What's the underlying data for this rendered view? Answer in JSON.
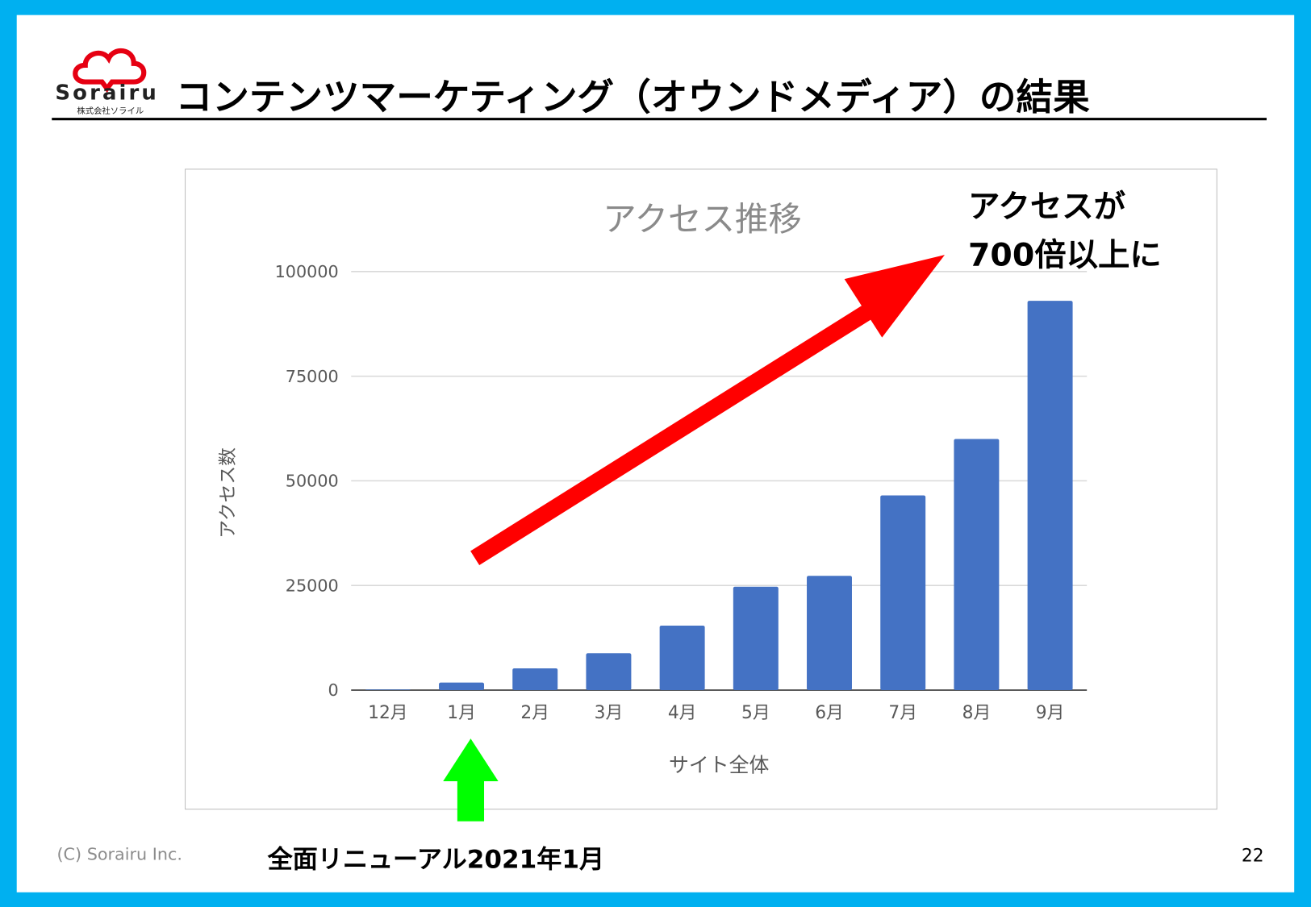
{
  "logo": {
    "text": "Sorairu",
    "subtext": "株式会社ソライル",
    "brand_color": "#e60012"
  },
  "header": {
    "title": "コンテンツマーケティング（オウンドメディア）の結果"
  },
  "chart_data": {
    "type": "bar",
    "title": "アクセス推移",
    "xlabel": "サイト全体",
    "ylabel": "アクセス数",
    "categories": [
      "12月",
      "1月",
      "2月",
      "3月",
      "4月",
      "5月",
      "6月",
      "7月",
      "8月",
      "9月"
    ],
    "values": [
      130,
      1800,
      5200,
      8800,
      15400,
      24700,
      27300,
      46500,
      60000,
      93000
    ],
    "ylim": [
      0,
      100000
    ],
    "yticks": [
      "0",
      "25000",
      "50000",
      "75000",
      "100000"
    ],
    "grid": true,
    "bar_color": "#4472c4"
  },
  "annotations": {
    "callout_line1": "アクセスが",
    "callout_line2": "700倍以上に",
    "trend_arrow_color": "#ff0000",
    "renewal_arrow_color": "#00ff00",
    "renewal_note": "全面リニューアル2021年1月"
  },
  "footer": {
    "copyright": "(C) Sorairu Inc.",
    "page_number": "22"
  },
  "colors": {
    "frame": "#00b0f0"
  }
}
